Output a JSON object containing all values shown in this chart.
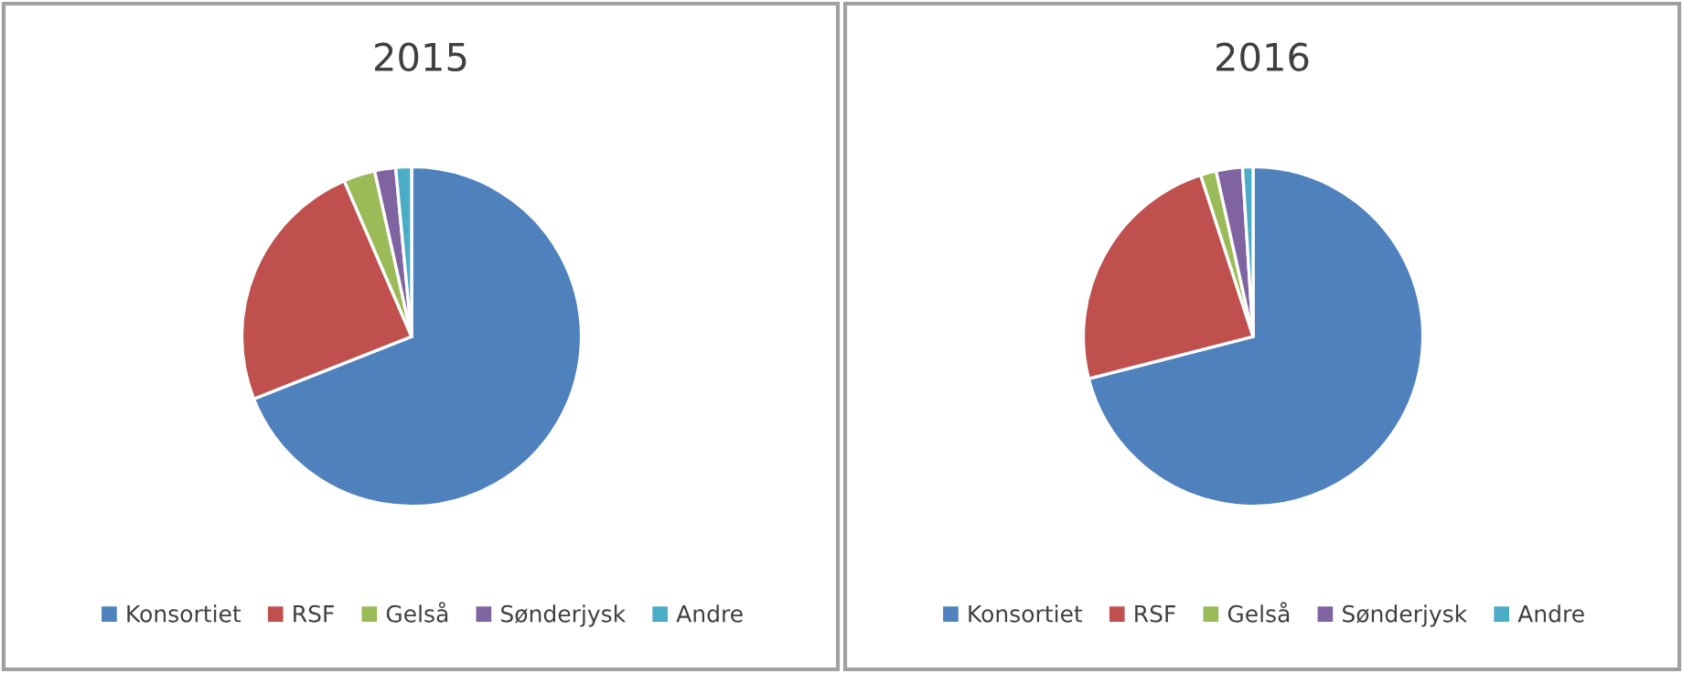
{
  "chart_data": [
    {
      "type": "pie",
      "title": "2015",
      "categories": [
        "Konsortiet",
        "RSF",
        "Gelså",
        "Sønderjysk",
        "Andre"
      ],
      "values": [
        69,
        24.5,
        3,
        2,
        1.5
      ],
      "colors": [
        "#4f81bd",
        "#c0504d",
        "#9bbb59",
        "#8064a2",
        "#4bacc6"
      ],
      "legend": "bottom"
    },
    {
      "type": "pie",
      "title": "2016",
      "categories": [
        "Konsortiet",
        "RSF",
        "Gelså",
        "Sønderjysk",
        "Andre"
      ],
      "values": [
        71,
        24,
        1.5,
        2.5,
        1
      ],
      "colors": [
        "#4f81bd",
        "#c0504d",
        "#9bbb59",
        "#8064a2",
        "#4bacc6"
      ],
      "legend": "bottom"
    }
  ]
}
